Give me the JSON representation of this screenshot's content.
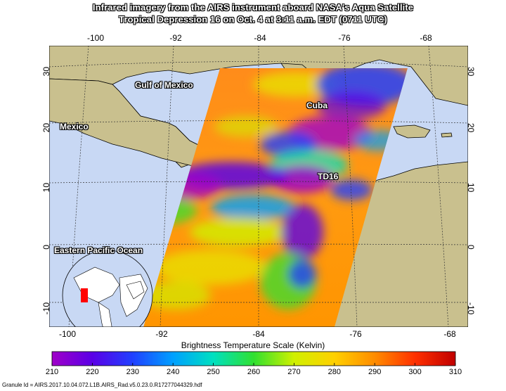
{
  "title": {
    "line1": "Infrared imagery from the AIRS instrument aboard NASA's Aqua Satellite",
    "line2": "Tropical Depression 16 on Oct. 4 at 3:11 a.m. EDT (0711 UTC)"
  },
  "map": {
    "lon_ticks": [
      "-100",
      "-92",
      "-84",
      "-76",
      "-68"
    ],
    "lat_ticks": [
      "30",
      "20",
      "10",
      "0",
      "-10"
    ],
    "labels": {
      "gulf": "Gulf of Mexico",
      "cuba": "Cuba",
      "mexico": "Mexico",
      "td16": "TD16",
      "pacific": "Eastern Pacific Ocean"
    },
    "colors": {
      "land": "#c9c08e",
      "ocean": "#c8d8f4",
      "gridline": "#333333"
    }
  },
  "colorbar": {
    "title": "Brightness Temperature Scale (Kelvin)",
    "ticks": [
      "210",
      "220",
      "230",
      "240",
      "250",
      "260",
      "270",
      "280",
      "290",
      "300",
      "310"
    ],
    "min": 210,
    "max": 310,
    "stops": [
      "#a000c8",
      "#5a00e6",
      "#2040ff",
      "#00a0ff",
      "#00e0c0",
      "#30e030",
      "#d0f000",
      "#ffd000",
      "#ff8c00",
      "#ff3000",
      "#c00000"
    ]
  },
  "granule_id": "Granule Id = AIRS.2017.10.04.072.L1B.AIRS_Rad.v5.0.23.0.R17277044329.hdf"
}
